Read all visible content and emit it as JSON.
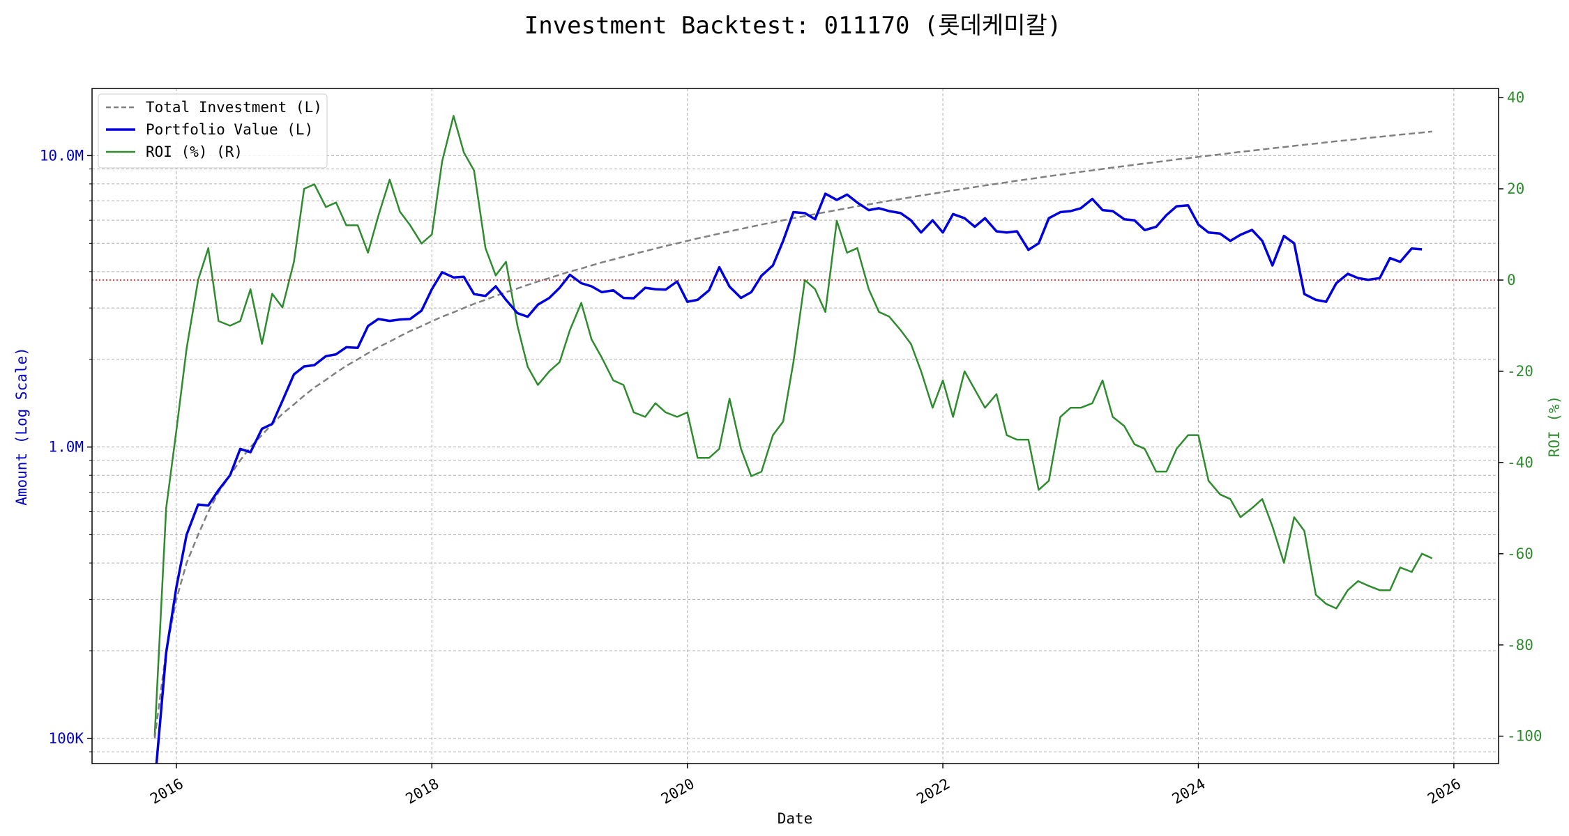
{
  "chart_data": {
    "type": "line",
    "title": "Investment Backtest: 011170 (롯데케미칼)",
    "xlabel": "Date",
    "ylabel_left": "Amount (Log Scale)",
    "ylabel_right": "ROI (%)",
    "left_axis": {
      "scale": "log",
      "ylim": [
        82000,
        17000000
      ],
      "ticks": [
        100000,
        1000000,
        10000000
      ],
      "tick_labels": [
        "100K",
        "1.0M",
        "10.0M"
      ]
    },
    "right_axis": {
      "ylim": [
        -106,
        42
      ],
      "ticks": [
        -100,
        -80,
        -60,
        -40,
        -20,
        0,
        20,
        40
      ],
      "tick_labels": [
        "-100",
        "-80",
        "-60",
        "-40",
        "-20",
        "0",
        "20",
        "40"
      ]
    },
    "x_axis": {
      "xlim": [
        2015.34,
        2026.35
      ],
      "ticks": [
        2016,
        2018,
        2020,
        2022,
        2024,
        2026
      ],
      "tick_labels": [
        "2016",
        "2018",
        "2020",
        "2022",
        "2024",
        "2026"
      ]
    },
    "grid": true,
    "legend_position": "upper-left",
    "reference_line": {
      "axis": "right",
      "value": 0,
      "color": "#ff0000",
      "style": "dotted"
    },
    "series": [
      {
        "name": "Total Investment (L)",
        "axis": "left",
        "color": "#808080",
        "style": "dashed",
        "key": "invest"
      },
      {
        "name": "Portfolio Value (L)",
        "axis": "left",
        "color": "#0000dd",
        "style": "solid",
        "key": "portfolio"
      },
      {
        "name": "ROI (%) (R)",
        "axis": "right",
        "color": "#2e8b2e",
        "style": "solid",
        "key": "roi"
      }
    ],
    "x": [
      2015.83,
      2015.92,
      2016.0,
      2016.08,
      2016.17,
      2016.25,
      2016.33,
      2016.42,
      2016.5,
      2016.58,
      2016.67,
      2016.75,
      2016.83,
      2016.92,
      2017.0,
      2017.08,
      2017.17,
      2017.25,
      2017.33,
      2017.42,
      2017.5,
      2017.58,
      2017.67,
      2017.75,
      2017.83,
      2017.92,
      2018.0,
      2018.08,
      2018.17,
      2018.25,
      2018.33,
      2018.42,
      2018.5,
      2018.58,
      2018.67,
      2018.75,
      2018.83,
      2018.92,
      2019.0,
      2019.08,
      2019.17,
      2019.25,
      2019.33,
      2019.42,
      2019.5,
      2019.58,
      2019.67,
      2019.75,
      2019.83,
      2019.92,
      2020.0,
      2020.08,
      2020.17,
      2020.25,
      2020.33,
      2020.42,
      2020.5,
      2020.58,
      2020.67,
      2020.75,
      2020.83,
      2020.92,
      2021.0,
      2021.08,
      2021.17,
      2021.25,
      2021.33,
      2021.42,
      2021.5,
      2021.58,
      2021.67,
      2021.75,
      2021.83,
      2021.92,
      2022.0,
      2022.08,
      2022.17,
      2022.25,
      2022.33,
      2022.42,
      2022.5,
      2022.58,
      2022.67,
      2022.75,
      2022.83,
      2022.92,
      2023.0,
      2023.08,
      2023.17,
      2023.25,
      2023.33,
      2023.42,
      2023.5,
      2023.58,
      2023.67,
      2023.75,
      2023.83,
      2023.92,
      2024.0,
      2024.08,
      2024.17,
      2024.25,
      2024.33,
      2024.42,
      2024.5,
      2024.58,
      2024.67,
      2024.75,
      2024.83,
      2024.92,
      2025.0,
      2025.08,
      2025.17,
      2025.25,
      2025.33,
      2025.42,
      2025.5,
      2025.58,
      2025.67,
      2025.75,
      2025.83
    ],
    "invest": [
      100000,
      200000,
      300000,
      400000,
      500000,
      600000,
      700000,
      800000,
      900000,
      1000000,
      1100000,
      1200000,
      1300000,
      1400000,
      1500000,
      1600000,
      1700000,
      1800000,
      1900000,
      2000000,
      2100000,
      2200000,
      2300000,
      2400000,
      2500000,
      2600000,
      2700000,
      2800000,
      2900000,
      3000000,
      3100000,
      3200000,
      3300000,
      3400000,
      3500000,
      3600000,
      3700000,
      3800000,
      3900000,
      4000000,
      4100000,
      4200000,
      4300000,
      4400000,
      4500000,
      4600000,
      4700000,
      4800000,
      4900000,
      5000000,
      5100000,
      5200000,
      5300000,
      5400000,
      5500000,
      5600000,
      5700000,
      5800000,
      5900000,
      6000000,
      6100000,
      6200000,
      6300000,
      6400000,
      6500000,
      6600000,
      6700000,
      6800000,
      6900000,
      7000000,
      7100000,
      7200000,
      7300000,
      7400000,
      7500000,
      7600000,
      7700000,
      7800000,
      7900000,
      8000000,
      8100000,
      8200000,
      8300000,
      8400000,
      8500000,
      8600000,
      8700000,
      8800000,
      8900000,
      9000000,
      9100000,
      9200000,
      9300000,
      9400000,
      9500000,
      9600000,
      9700000,
      9800000,
      9900000,
      10000000,
      10100000,
      10200000,
      10300000,
      10400000,
      10500000,
      10600000,
      10700000,
      10800000,
      10900000,
      11000000,
      11100000,
      11200000,
      11300000,
      11400000,
      11500000,
      11600000,
      11700000,
      11800000,
      11900000,
      12000000,
      12100000
    ],
    "portfolio": [
      60000,
      197000,
      330000,
      500000,
      635000,
      630000,
      712000,
      800000,
      985000,
      960000,
      1155000,
      1200000,
      1440000,
      1775000,
      1890000,
      1910000,
      2050000,
      2080000,
      2200000,
      2190000,
      2600000,
      2750000,
      2710000,
      2740000,
      2750000,
      2940000,
      3480000,
      3980000,
      3820000,
      3840000,
      3350000,
      3300000,
      3560000,
      3200000,
      2880000,
      2800000,
      3080000,
      3250000,
      3520000,
      3900000,
      3650000,
      3560000,
      3400000,
      3450000,
      3250000,
      3240000,
      3520000,
      3480000,
      3470000,
      3700000,
      3150000,
      3200000,
      3450000,
      4140000,
      3550000,
      3250000,
      3400000,
      3870000,
      4200000,
      5100000,
      6400000,
      6350000,
      6050000,
      7400000,
      7050000,
      7350000,
      6900000,
      6500000,
      6600000,
      6450000,
      6350000,
      6000000,
      5450000,
      6000000,
      5450000,
      6300000,
      6100000,
      5700000,
      6100000,
      5500000,
      5450000,
      5500000,
      4750000,
      5000000,
      6100000,
      6400000,
      6450000,
      6600000,
      7100000,
      6500000,
      6450000,
      6050000,
      6000000,
      5550000,
      5700000,
      6250000,
      6700000,
      6750000,
      5800000,
      5450000,
      5400000,
      5100000,
      5350000,
      5560000,
      5100000,
      4200000,
      5300000,
      5000000,
      3350000,
      3200000,
      3150000,
      3650000,
      3930000,
      3800000,
      3750000,
      3800000,
      4450000,
      4320000,
      4800000,
      4770000
    ],
    "roi": [
      -100,
      -50,
      -33,
      -15,
      0,
      7,
      -9,
      -10,
      -9,
      -2,
      -14,
      -3,
      -6,
      4,
      20,
      21,
      16,
      17,
      12,
      12,
      6,
      14,
      22,
      15,
      12,
      8,
      10,
      26,
      36,
      28,
      24,
      7,
      1,
      4,
      -10,
      -19,
      -23,
      -20,
      -18,
      -11,
      -5,
      -13,
      -17,
      -22,
      -23,
      -29,
      -30,
      -27,
      -29,
      -30,
      -29,
      -39,
      -39,
      -37,
      -26,
      -37,
      -43,
      -42,
      -34,
      -31,
      -18,
      0,
      -2,
      -7,
      13,
      6,
      7,
      -2,
      -7,
      -8,
      -11,
      -14,
      -20,
      -28,
      -22,
      -30,
      -20,
      -24,
      -28,
      -25,
      -34,
      -35,
      -35,
      -46,
      -44,
      -30,
      -28,
      -28,
      -27,
      -22,
      -30,
      -32,
      -36,
      -37,
      -42,
      -42,
      -37,
      -34,
      -34,
      -44,
      -47,
      -48,
      -52,
      -50,
      -48,
      -54,
      -62,
      -52,
      -55,
      -69,
      -71,
      -72,
      -68,
      -66,
      -67,
      -68,
      -68,
      -63,
      -64,
      -60,
      -61
    ]
  }
}
